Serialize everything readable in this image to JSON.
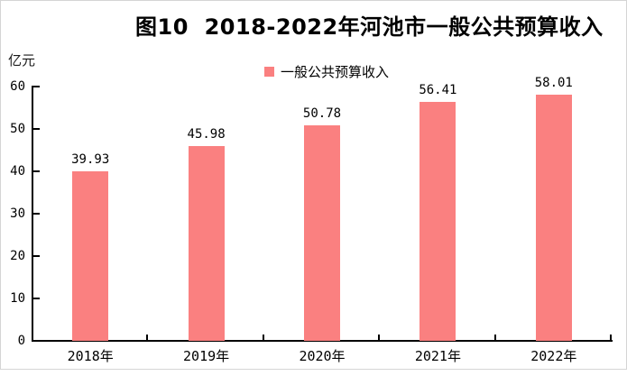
{
  "title": "图10  2018-2022年河池市一般公共预算收入",
  "y_axis": {
    "unit": "亿元",
    "ticks": [
      0,
      10,
      20,
      30,
      40,
      50,
      60
    ],
    "min": 0,
    "max": 60
  },
  "legend": {
    "label": "一般公共预算收入",
    "marker_color": "#FA8080",
    "position": "top-center"
  },
  "chart_data": {
    "type": "bar",
    "title": "图10  2018-2022年河池市一般公共预算收入",
    "categories": [
      "2018年",
      "2019年",
      "2020年",
      "2021年",
      "2022年"
    ],
    "values": [
      39.93,
      45.98,
      50.78,
      56.41,
      58.01
    ],
    "data_labels": [
      "39.93",
      "45.98",
      "50.78",
      "56.41",
      "58.01"
    ],
    "series_name": "一般公共预算收入",
    "xlabel": "",
    "ylabel": "亿元",
    "ylim": [
      0,
      60
    ],
    "y_tick_step": 10,
    "grid": false,
    "legend_position": "top-center",
    "bar_color": "#FA8080"
  },
  "colors": {
    "bar": "#FA8080",
    "axis": "#000000",
    "text": "#000000",
    "frame_border": "#D5D5D5",
    "background": "#FFFFFF"
  }
}
